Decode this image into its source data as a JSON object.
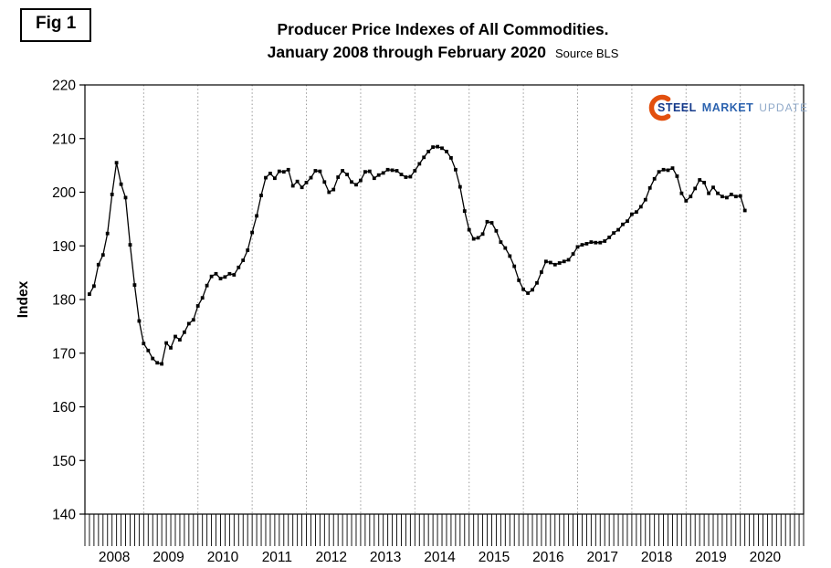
{
  "figure": {
    "label": "Fig 1"
  },
  "logo": {
    "steel": "STEEL",
    "market": "MARKET",
    "update": "UPDATE",
    "accent_color": "#e2500f",
    "steel_color": "#14398a",
    "market_color": "#2c63af",
    "update_color": "#8fa9c9"
  },
  "chart_data": {
    "type": "line",
    "title": "Producer Price Indexes of All Commodities.",
    "subtitle": "January 2008 through February 2020",
    "source": "Source BLS",
    "ylabel": "Index",
    "ylim": [
      140,
      220
    ],
    "ytick_step": 10,
    "yticks": [
      220,
      210,
      200,
      190,
      180,
      170,
      160,
      150,
      140
    ],
    "years": [
      "2008",
      "2009",
      "2010",
      "2011",
      "2012",
      "2013",
      "2014",
      "2015",
      "2016",
      "2017",
      "2018",
      "2019",
      "2020"
    ],
    "x_start": "2008-01",
    "x_end": "2020-02",
    "grid": "vertical-dotted-yearly",
    "legend": "none",
    "line_color": "#000000",
    "marker": "square",
    "values": [
      181.0,
      182.5,
      186.5,
      188.3,
      192.3,
      199.6,
      205.5,
      201.5,
      199.0,
      190.2,
      182.7,
      176.0,
      171.8,
      170.5,
      169.0,
      168.2,
      168.0,
      171.9,
      171.0,
      173.1,
      172.5,
      173.9,
      175.5,
      176.2,
      178.8,
      180.3,
      182.6,
      184.3,
      184.8,
      183.9,
      184.2,
      184.8,
      184.6,
      186.0,
      187.3,
      189.2,
      192.5,
      195.6,
      199.4,
      202.7,
      203.5,
      202.6,
      203.9,
      203.8,
      204.2,
      201.2,
      202.0,
      200.9,
      201.8,
      202.7,
      204.0,
      203.9,
      201.9,
      200.0,
      200.5,
      202.8,
      204.0,
      203.3,
      201.9,
      201.4,
      202.2,
      203.8,
      203.9,
      202.6,
      203.2,
      203.6,
      204.2,
      204.1,
      204.0,
      203.3,
      202.8,
      202.9,
      204.0,
      205.3,
      206.5,
      207.6,
      208.4,
      208.5,
      208.2,
      207.6,
      206.4,
      204.2,
      201.0,
      196.5,
      193.0,
      191.3,
      191.5,
      192.2,
      194.5,
      194.3,
      192.8,
      190.7,
      189.6,
      188.1,
      186.2,
      183.6,
      181.9,
      181.2,
      181.8,
      183.1,
      185.1,
      187.1,
      186.9,
      186.5,
      186.8,
      187.1,
      187.4,
      188.5,
      189.8,
      190.2,
      190.4,
      190.7,
      190.6,
      190.6,
      190.9,
      191.6,
      192.4,
      193.0,
      194.0,
      194.6,
      195.9,
      196.3,
      197.3,
      198.6,
      200.8,
      202.5,
      203.8,
      204.2,
      204.1,
      204.5,
      203.0,
      199.8,
      198.4,
      199.2,
      200.7,
      202.3,
      201.8,
      199.8,
      200.9,
      199.8,
      199.2,
      199.0,
      199.6,
      199.2,
      199.3,
      196.6
    ]
  }
}
